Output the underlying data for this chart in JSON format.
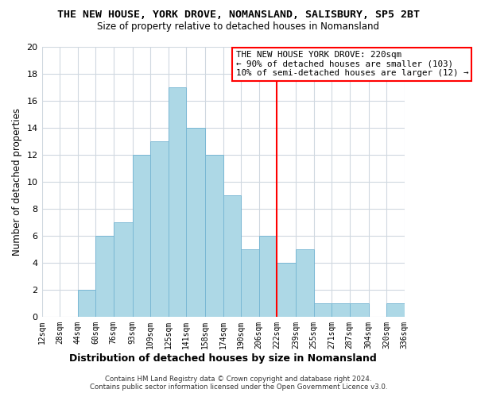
{
  "title": "THE NEW HOUSE, YORK DROVE, NOMANSLAND, SALISBURY, SP5 2BT",
  "subtitle": "Size of property relative to detached houses in Nomansland",
  "xlabel": "Distribution of detached houses by size in Nomansland",
  "ylabel": "Number of detached properties",
  "bin_edges": [
    12,
    28,
    44,
    60,
    76,
    93,
    109,
    125,
    141,
    158,
    174,
    190,
    206,
    222,
    239,
    255,
    271,
    287,
    304,
    320,
    336
  ],
  "counts": [
    0,
    0,
    2,
    6,
    7,
    12,
    13,
    17,
    14,
    12,
    9,
    5,
    6,
    4,
    5,
    1,
    1,
    1,
    0,
    1
  ],
  "bar_color": "#add8e6",
  "bar_edgecolor": "#7ab8d4",
  "vline_x": 222,
  "vline_color": "red",
  "ylim": [
    0,
    20
  ],
  "yticks": [
    0,
    2,
    4,
    6,
    8,
    10,
    12,
    14,
    16,
    18,
    20
  ],
  "xtick_labels": [
    "12sqm",
    "28sqm",
    "44sqm",
    "60sqm",
    "76sqm",
    "93sqm",
    "109sqm",
    "125sqm",
    "141sqm",
    "158sqm",
    "174sqm",
    "190sqm",
    "206sqm",
    "222sqm",
    "239sqm",
    "255sqm",
    "271sqm",
    "287sqm",
    "304sqm",
    "320sqm",
    "336sqm"
  ],
  "annotation_title": "THE NEW HOUSE YORK DROVE: 220sqm",
  "annotation_line1": "← 90% of detached houses are smaller (103)",
  "annotation_line2": "10% of semi-detached houses are larger (12) →",
  "footer_line1": "Contains HM Land Registry data © Crown copyright and database right 2024.",
  "footer_line2": "Contains public sector information licensed under the Open Government Licence v3.0.",
  "background_color": "#ffffff",
  "grid_color": "#d0d8e0"
}
